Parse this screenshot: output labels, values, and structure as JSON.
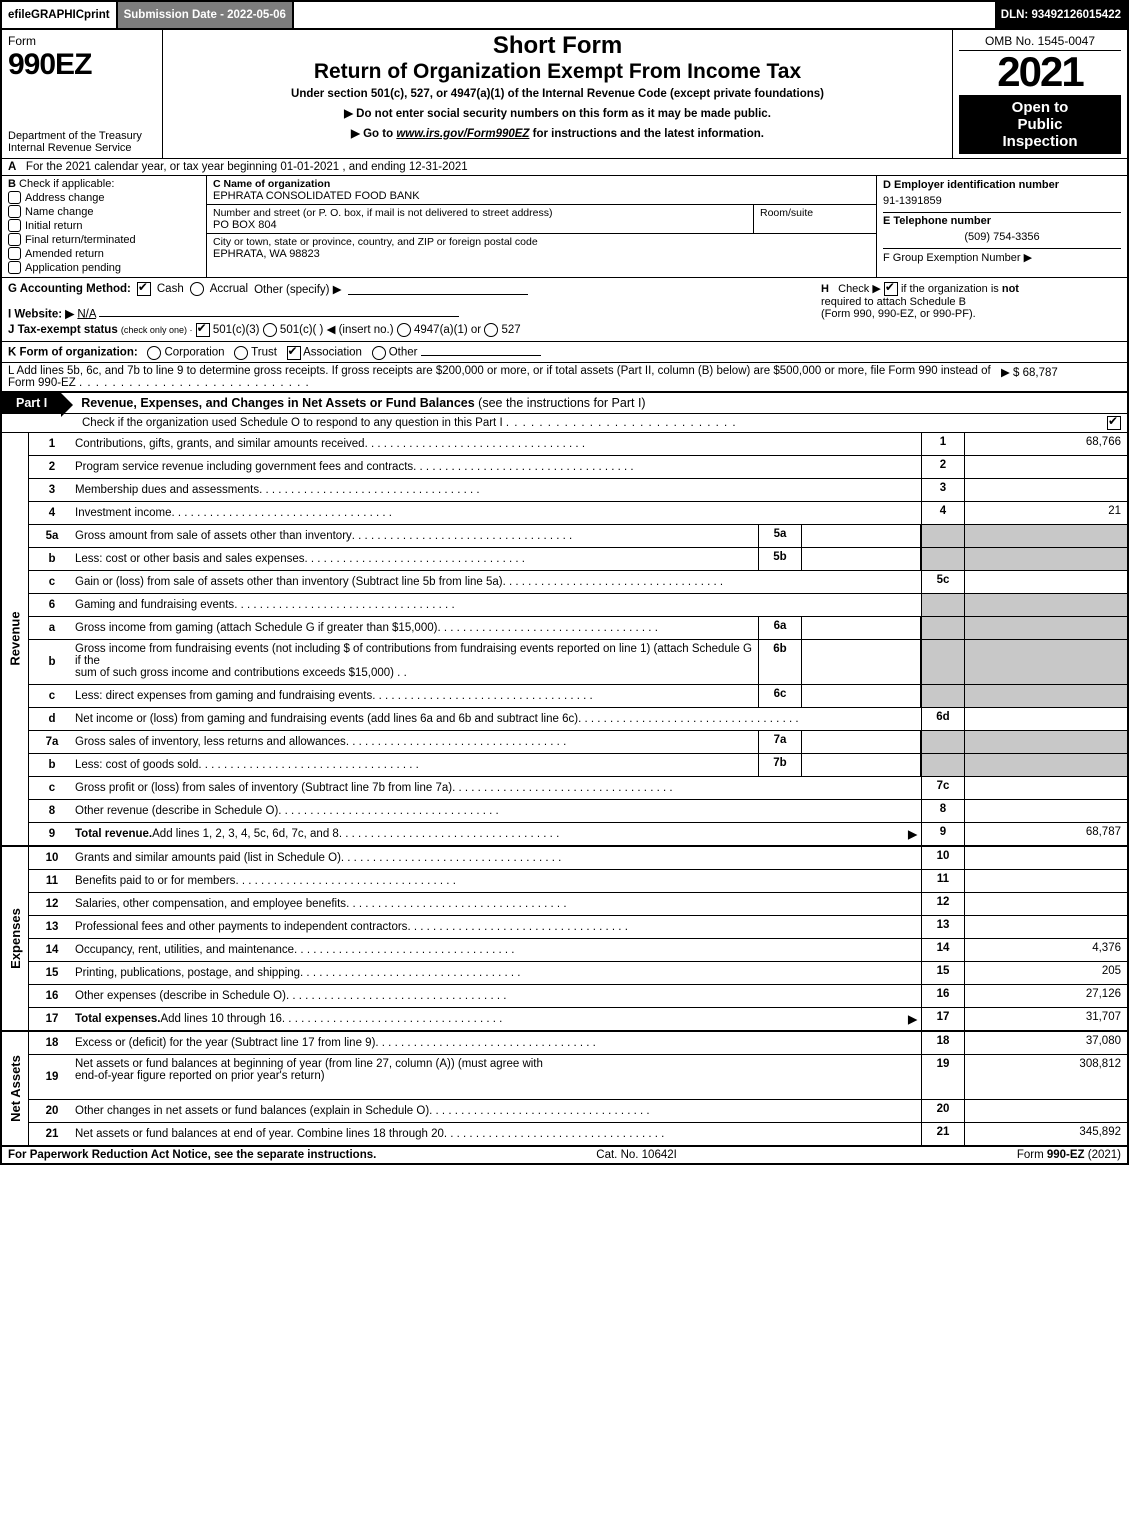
{
  "topbar": {
    "efile_prefix": "efile ",
    "efile_bold": "GRAPHIC ",
    "efile_print": "print",
    "submission": "Submission Date - 2022-05-06",
    "dln": "DLN: 93492126015422"
  },
  "header": {
    "form_word": "Form",
    "form_num": "990EZ",
    "dept": "Department of the Treasury\nInternal Revenue Service",
    "short_form": "Short Form",
    "return_title": "Return of Organization Exempt From Income Tax",
    "under_section": "Under section 501(c), 527, or 4947(a)(1) of the Internal Revenue Code (except private foundations)",
    "no_ssn": "▶ Do not enter social security numbers on this form as it may be made public.",
    "goto_pre": "▶ Go to ",
    "goto_link": "www.irs.gov/Form990EZ",
    "goto_post": " for instructions and the latest information.",
    "omb": "OMB No. 1545-0047",
    "year": "2021",
    "open1": "Open to",
    "open2": "Public",
    "open3": "Inspection"
  },
  "A": {
    "letter": "A",
    "text": "For the 2021 calendar year, or tax year beginning 01-01-2021 , and ending 12-31-2021"
  },
  "B": {
    "letter": "B",
    "title": "Check if applicable:",
    "opts": [
      "Address change",
      "Name change",
      "Initial return",
      "Final return/terminated",
      "Amended return",
      "Application pending"
    ]
  },
  "C": {
    "name_lbl": "C Name of organization",
    "name_val": "EPHRATA CONSOLIDATED FOOD BANK",
    "street_lbl": "Number and street (or P. O. box, if mail is not delivered to street address)",
    "street_val": "PO BOX 804",
    "room_lbl": "Room/suite",
    "city_lbl": "City or town, state or province, country, and ZIP or foreign postal code",
    "city_val": "EPHRATA, WA  98823"
  },
  "D": {
    "ein_lbl": "D Employer identification number",
    "ein_val": "91-1391859",
    "tel_lbl": "E Telephone number",
    "tel_val": "(509) 754-3356",
    "grp_lbl": "F Group Exemption Number  ▶"
  },
  "G": {
    "label": "G Accounting Method:",
    "cash": "Cash",
    "accrual": "Accrual",
    "other": "Other (specify) ▶"
  },
  "H": {
    "letter": "H",
    "text1": "Check ▶",
    "text2": "if the organization is ",
    "not": "not",
    "text3": "required to attach Schedule B",
    "text4": "(Form 990, 990-EZ, or 990-PF)."
  },
  "I": {
    "label": "I Website: ▶",
    "val": "N/A"
  },
  "J": {
    "label": "J Tax-exempt status",
    "sub": "(check only one) ·",
    "o1": "501(c)(3)",
    "o2": "501(c)(  ) ◀ (insert no.)",
    "o3": "4947(a)(1) or",
    "o4": "527"
  },
  "K": {
    "text": "K Form of organization:",
    "opts": [
      "Corporation",
      "Trust",
      "Association",
      "Other"
    ],
    "checked": 2
  },
  "L": {
    "text": "L Add lines 5b, 6c, and 7b to line 9 to determine gross receipts. If gross receipts are $200,000 or more, or if total assets (Part II, column (B) below) are $500,000 or more, file Form 990 instead of Form 990-EZ",
    "amt": "▶ $ 68,787"
  },
  "part1": {
    "tab": "Part I",
    "title": "Revenue, Expenses, and Changes in Net Assets or Fund Balances ",
    "title2": "(see the instructions for Part I)",
    "sub": "Check if the organization used Schedule O to respond to any question in this Part I"
  },
  "revenue": {
    "side": "Revenue",
    "lines": [
      {
        "n": "1",
        "d": "Contributions, gifts, grants, and similar amounts received",
        "box": "1",
        "amt": "68,766"
      },
      {
        "n": "2",
        "d": "Program service revenue including government fees and contracts",
        "box": "2",
        "amt": ""
      },
      {
        "n": "3",
        "d": "Membership dues and assessments",
        "box": "3",
        "amt": ""
      },
      {
        "n": "4",
        "d": "Investment income",
        "box": "4",
        "amt": "21"
      },
      {
        "n": "5a",
        "d": "Gross amount from sale of assets other than inventory",
        "mini": "5a",
        "shade": true
      },
      {
        "n": "b",
        "d": "Less: cost or other basis and sales expenses",
        "mini": "5b",
        "shade": true
      },
      {
        "n": "c",
        "d": "Gain or (loss) from sale of assets other than inventory (Subtract line 5b from line 5a)",
        "box": "5c",
        "amt": ""
      },
      {
        "n": "6",
        "d": "Gaming and fundraising events",
        "shade_all": true
      },
      {
        "n": "a",
        "d": "Gross income from gaming (attach Schedule G if greater than $15,000)",
        "mini": "6a",
        "shade": true
      },
      {
        "n": "b",
        "d_multi": [
          "Gross income from fundraising events (not including $                             of contributions from fundraising events reported on line 1) (attach Schedule G if the",
          "sum of such gross income and contributions exceeds $15,000)     .    ."
        ],
        "mini": "6b",
        "shade": true,
        "tall": true
      },
      {
        "n": "c",
        "d": "Less: direct expenses from gaming and fundraising events",
        "mini": "6c",
        "shade": true
      },
      {
        "n": "d",
        "d": "Net income or (loss) from gaming and fundraising events (add lines 6a and 6b and subtract line 6c)",
        "box": "6d",
        "amt": ""
      },
      {
        "n": "7a",
        "d": "Gross sales of inventory, less returns and allowances",
        "mini": "7a",
        "shade": true
      },
      {
        "n": "b",
        "d": "Less: cost of goods sold",
        "mini": "7b",
        "shade": true
      },
      {
        "n": "c",
        "d": "Gross profit or (loss) from sales of inventory (Subtract line 7b from line 7a)",
        "box": "7c",
        "amt": ""
      },
      {
        "n": "8",
        "d": "Other revenue (describe in Schedule O)",
        "box": "8",
        "amt": ""
      },
      {
        "n": "9",
        "d": "Total revenue. Add lines 1, 2, 3, 4, 5c, 6d, 7c, and 8",
        "box": "9",
        "amt": "68,787",
        "bold": true,
        "arrow": true
      }
    ]
  },
  "expenses": {
    "side": "Expenses",
    "lines": [
      {
        "n": "10",
        "d": "Grants and similar amounts paid (list in Schedule O)",
        "box": "10",
        "amt": ""
      },
      {
        "n": "11",
        "d": "Benefits paid to or for members",
        "box": "11",
        "amt": ""
      },
      {
        "n": "12",
        "d": "Salaries, other compensation, and employee benefits",
        "box": "12",
        "amt": ""
      },
      {
        "n": "13",
        "d": "Professional fees and other payments to independent contractors",
        "box": "13",
        "amt": ""
      },
      {
        "n": "14",
        "d": "Occupancy, rent, utilities, and maintenance",
        "box": "14",
        "amt": "4,376"
      },
      {
        "n": "15",
        "d": "Printing, publications, postage, and shipping",
        "box": "15",
        "amt": "205"
      },
      {
        "n": "16",
        "d": "Other expenses (describe in Schedule O)",
        "box": "16",
        "amt": "27,126"
      },
      {
        "n": "17",
        "d": "Total expenses. Add lines 10 through 16",
        "box": "17",
        "amt": "31,707",
        "bold": true,
        "arrow": true
      }
    ]
  },
  "netassets": {
    "side": "Net Assets",
    "lines": [
      {
        "n": "18",
        "d": "Excess or (deficit) for the year (Subtract line 17 from line 9)",
        "box": "18",
        "amt": "37,080"
      },
      {
        "n": "19",
        "d_multi": [
          "Net assets or fund balances at beginning of year (from line 27, column (A)) (must agree with",
          "end-of-year figure reported on prior year's return)"
        ],
        "box": "19",
        "amt": "308,812",
        "tall": true
      },
      {
        "n": "20",
        "d": "Other changes in net assets or fund balances (explain in Schedule O)",
        "box": "20",
        "amt": ""
      },
      {
        "n": "21",
        "d": "Net assets or fund balances at end of year. Combine lines 18 through 20",
        "box": "21",
        "amt": "345,892"
      }
    ]
  },
  "footer": {
    "f1": "For Paperwork Reduction Act Notice, see the separate instructions.",
    "f2": "Cat. No. 10642I",
    "f3a": "Form ",
    "f3b": "990-EZ",
    "f3c": " (2021)"
  },
  "colors": {
    "shade": "#c8c8c8",
    "topgray": "#7d7d7d"
  }
}
